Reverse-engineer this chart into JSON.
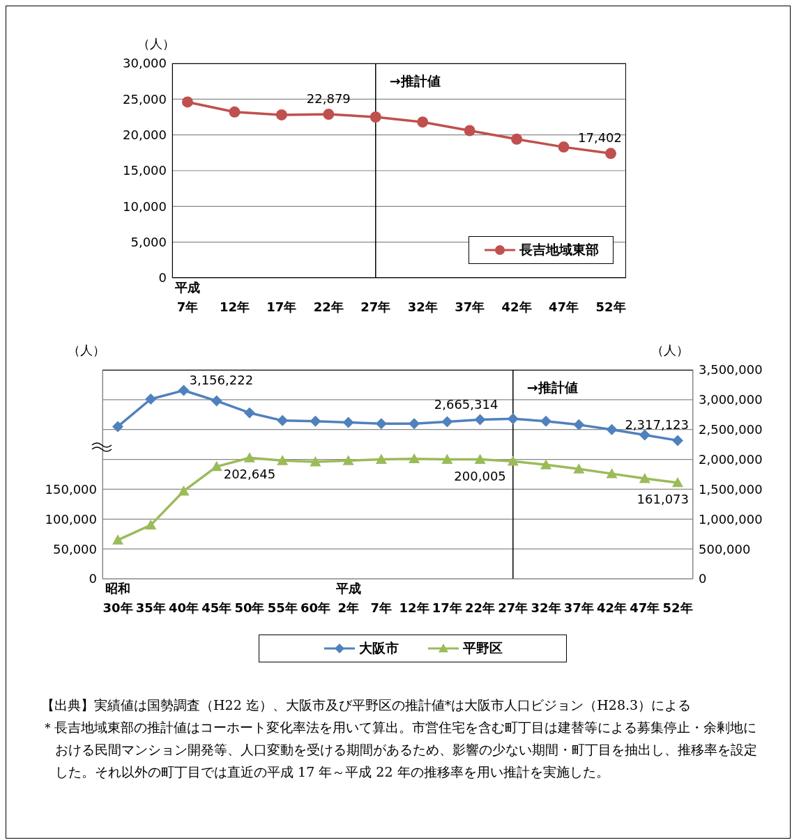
{
  "chart_data": [
    {
      "type": "line",
      "ylabel": "（人）",
      "categories": [
        "平成\n7年",
        "12年",
        "17年",
        "22年",
        "27年",
        "32年",
        "37年",
        "42年",
        "47年",
        "52年"
      ],
      "series": [
        {
          "name": "長吉地域東部",
          "color": "#c0504d",
          "marker": "circle",
          "values": [
            24600,
            23200,
            22800,
            22879,
            22500,
            21800,
            20600,
            19400,
            18300,
            17402
          ],
          "value_labels": [
            null,
            null,
            null,
            "22,879",
            null,
            null,
            null,
            null,
            null,
            "17,402"
          ]
        }
      ],
      "ylim": [
        0,
        30000
      ],
      "yticks": [
        0,
        {
          "value": 5000,
          "label": "5,000"
        },
        {
          "value": 10000,
          "label": "10,000"
        },
        {
          "value": 15000,
          "label": "15,000"
        },
        {
          "value": 20000,
          "label": "20,000"
        },
        {
          "value": 25000,
          "label": "25,000"
        },
        {
          "value": 30000,
          "label": "30,000"
        }
      ],
      "grid": "y",
      "legend": "bottom right",
      "ref_lines": [
        {
          "axis": "x",
          "value": "27年",
          "label": "→推計値",
          "color": "#000000"
        }
      ]
    },
    {
      "type": "line",
      "ylabel": "（人）",
      "y2label": "（人）",
      "categories": [
        "昭和\n30年",
        "35年",
        "40年",
        "45年",
        "50年",
        "55年",
        "60年",
        "平成\n2年",
        "7年",
        "12年",
        "17年",
        "22年",
        "27年",
        "32年",
        "37年",
        "42年",
        "47年",
        "52年"
      ],
      "series": [
        {
          "name": "大阪市",
          "color": "#4f81bd",
          "marker": "diamond",
          "axis": "y2",
          "values": [
            2550000,
            3010000,
            3156222,
            2980000,
            2780000,
            2650000,
            2640000,
            2620000,
            2600000,
            2600000,
            2630000,
            2665314,
            2680000,
            2640000,
            2580000,
            2500000,
            2410000,
            2317123
          ],
          "value_labels": [
            null,
            null,
            "3,156,222",
            null,
            null,
            null,
            null,
            null,
            null,
            null,
            null,
            "2,665,314",
            null,
            null,
            null,
            null,
            null,
            "2,317,123"
          ]
        },
        {
          "name": "平野区",
          "color": "#9bbb59",
          "marker": "triangle",
          "values": [
            65000,
            90000,
            147000,
            188000,
            202645,
            198000,
            196000,
            198000,
            200000,
            201000,
            200000,
            200005,
            197000,
            191000,
            184000,
            176000,
            168000,
            161073
          ],
          "value_labels": [
            null,
            null,
            null,
            null,
            "202,645",
            null,
            null,
            null,
            null,
            null,
            null,
            "200,005",
            null,
            null,
            null,
            null,
            null,
            "161,073"
          ]
        }
      ],
      "ylim": [
        0,
        350000
      ],
      "yticks": [
        0,
        {
          "value": 50000,
          "label": "50,000"
        },
        {
          "value": 100000,
          "label": "100,000"
        },
        {
          "value": 150000,
          "label": "150,000"
        },
        {
          "value": 200000,
          "label": null
        },
        {
          "value": 250000,
          "label": null
        },
        {
          "value": 300000,
          "label": null
        },
        {
          "value": 350000,
          "label": null
        }
      ],
      "y2lim": [
        0,
        3500000
      ],
      "y2ticks": [
        0,
        {
          "value": 500000,
          "label": "500,000"
        },
        {
          "value": 1000000,
          "label": "1,000,000"
        },
        {
          "value": 1500000,
          "label": "1,500,000"
        },
        {
          "value": 2000000,
          "label": "2,000,000"
        },
        {
          "value": 2500000,
          "label": "2,500,000"
        },
        {
          "value": 3000000,
          "label": "3,000,000"
        },
        {
          "value": 3500000,
          "label": "3,500,000"
        }
      ],
      "grid": "y",
      "legend": "bottom",
      "ref_lines": [
        {
          "axis": "x",
          "value": "27年",
          "label": "→推計値",
          "color": "#000000"
        }
      ],
      "annotations": [
        "【出典】実績値は国勢調査（H22 迄）、大阪市及び平野区の推計値*は大阪市人口ビジョン（H28.3）による",
        "＊長吉地域東部の推計値はコーホート変化率法を用いて算出。市営住宅を含む町丁目は建替等による募集停止・余剰地における民間マンション開発等、人口変動を受ける期間があるため、影響の少ない期間・町丁目を抽出し、推移率を設定した。それ以外の町丁目では直近の平成 17 年～平成 22 年の推移率を用い推計を実施した。"
      ]
    }
  ]
}
